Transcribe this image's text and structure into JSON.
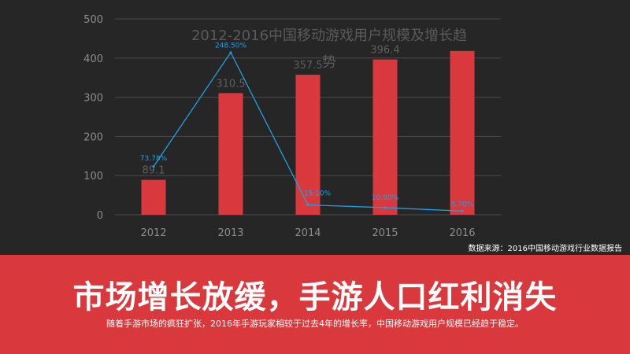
{
  "chart_data": {
    "type": "bar",
    "title_line1": "2012-2016中国移动游戏用户规模及增长趋",
    "title_line2": "势",
    "categories": [
      "2012",
      "2013",
      "2014",
      "2015",
      "2016"
    ],
    "ylim": [
      0,
      500
    ],
    "yticks": [
      "0",
      "100",
      "200",
      "300",
      "400",
      "500"
    ],
    "grid": true,
    "series": [
      {
        "type": "bar",
        "values": [
          89.1,
          310.5,
          357.5,
          396.4,
          418.0
        ],
        "labels": [
          "89.1",
          "310.5",
          "357.5",
          "396.4",
          ""
        ],
        "color": "#d9383d"
      },
      {
        "type": "line",
        "values": [
          73.78,
          248.5,
          15.1,
          10.9,
          5.7
        ],
        "labels": [
          "73.78%",
          "248.50%",
          "15.10%",
          "10.90%",
          "5.70%"
        ],
        "color": "#1ea0e6",
        "ylim": [
          0,
          300
        ]
      }
    ]
  },
  "source_text": "数据来源：2016中国移动游戏行业数据报告",
  "headline": "市场增长放缓，手游人口红利消失",
  "subline": "随着手游市场的疯狂扩张，2016年手游玩家相较于过去4年的增长率，中国移动游戏用户规模已经趋于稳定。",
  "colors": {
    "background": "#262626",
    "banner": "#d9383d",
    "bar": "#d9383d",
    "line": "#1ea0e6",
    "axis_text": "#8c8c8c",
    "grid": "#4a4a4a"
  }
}
